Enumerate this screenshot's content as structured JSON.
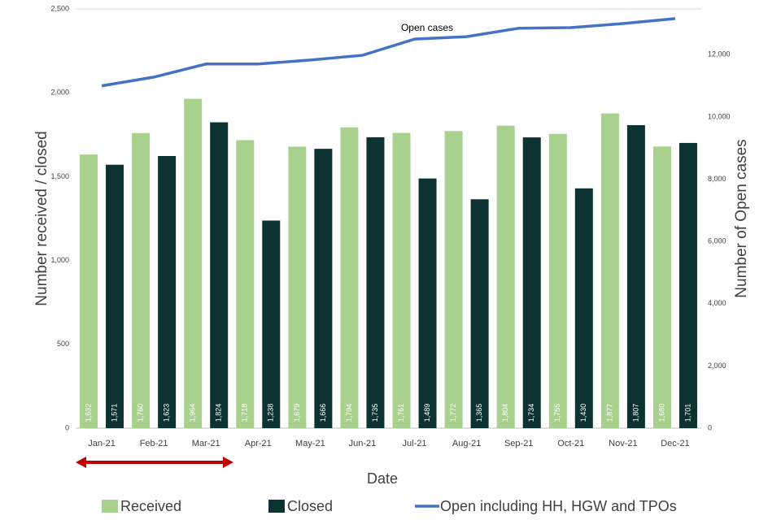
{
  "chart_data": {
    "type": "bar",
    "y_label": "Number received / closed",
    "y2_label": "Number of Open cases",
    "x_label": "Date",
    "annotation": "Open cases",
    "categories": [
      "Jan-21",
      "Feb-21",
      "Mar-21",
      "Apr-21",
      "May-21",
      "Jun-21",
      "Jul-21",
      "Aug-21",
      "Sep-21",
      "Oct-21",
      "Nov-21",
      "Dec-21"
    ],
    "series": [
      {
        "name": "Received",
        "color": "#a9d18e",
        "values": [
          1632,
          1760,
          1964,
          1718,
          1679,
          1794,
          1761,
          1772,
          1804,
          1755,
          1877,
          1680
        ],
        "value_labels": [
          "1,632",
          "1,760",
          "1,964",
          "1,718",
          "1,679",
          "1,794",
          "1,761",
          "1,772",
          "1,804",
          "1,755",
          "1,877",
          "1,680"
        ]
      },
      {
        "name": "Closed",
        "color": "#0c3331",
        "values": [
          1571,
          1623,
          1824,
          1238,
          1666,
          1735,
          1489,
          1365,
          1734,
          1430,
          1807,
          1701
        ],
        "value_labels": [
          "1,571",
          "1,623",
          "1,824",
          "1,238",
          "1,666",
          "1,735",
          "1,489",
          "1,365",
          "1,734",
          "1,430",
          "1,807",
          "1,701"
        ]
      },
      {
        "name": "Open including HH, HGW and TPOs",
        "color": "#4472c4",
        "type": "line",
        "axis": "y2",
        "values": [
          11000,
          11280,
          11700,
          11700,
          11830,
          11980,
          12500,
          12580,
          12850,
          12870,
          13000,
          13160
        ]
      }
    ],
    "ylim": [
      0,
      2500
    ],
    "yticks": [
      0,
      500,
      {
        "value": 1000,
        "label": "1,000"
      },
      {
        "value": 1500,
        "label": "1,500"
      },
      {
        "value": 2000,
        "label": "2,000"
      },
      {
        "value": 2500,
        "label": "2,500"
      }
    ],
    "y2lim": [
      0,
      13470
    ],
    "y2ticks": [
      0,
      {
        "value": 2000,
        "label": "2,000"
      },
      {
        "value": 4000,
        "label": "4,000"
      },
      {
        "value": 6000,
        "label": "6,000"
      },
      {
        "value": 8000,
        "label": "8,000"
      },
      {
        "value": 10000,
        "label": "10,000"
      },
      {
        "value": 12000,
        "label": "12,000"
      }
    ]
  }
}
